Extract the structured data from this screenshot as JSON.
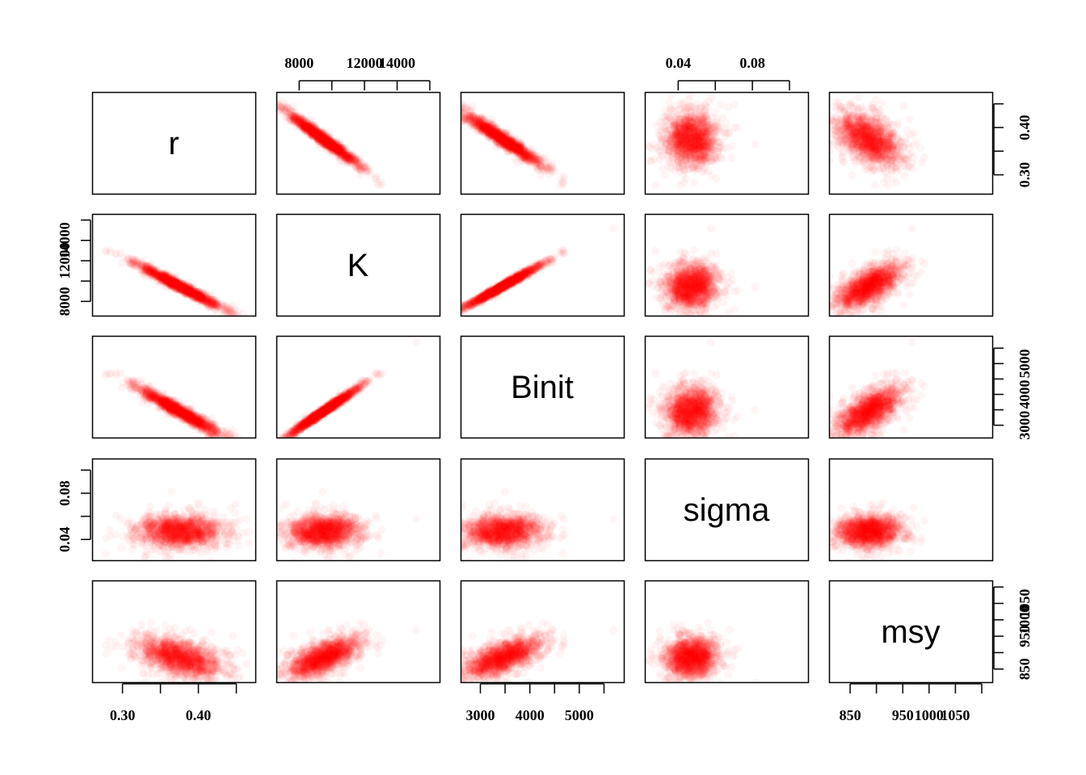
{
  "chart_data": {
    "type": "scatter",
    "plot_kind": "pairs",
    "variables": [
      "r",
      "K",
      "Binit",
      "sigma",
      "msy"
    ],
    "ranges": {
      "r": [
        0.26,
        0.475
      ],
      "K": [
        6600,
        16600
      ],
      "Binit": [
        2600,
        5900
      ],
      "sigma": [
        0.022,
        0.11
      ],
      "msy": [
        810,
        1120
      ]
    },
    "ticks": {
      "r": [
        0.3,
        0.35,
        0.4,
        0.45
      ],
      "K": [
        8000,
        10000,
        12000,
        14000,
        16000
      ],
      "Binit": [
        3000,
        3500,
        4000,
        4500,
        5000,
        5500
      ],
      "sigma": [
        0.04,
        0.06,
        0.08,
        0.1
      ],
      "msy": [
        850,
        900,
        950,
        1000,
        1050,
        1100
      ]
    },
    "tick_labels": {
      "r": [
        "0.30",
        "0.40"
      ],
      "K": [
        "8000",
        "12000",
        "14000",
        "8000"
      ],
      "Binit": [
        "3000",
        "4000",
        "5000",
        "3000"
      ],
      "sigma": [
        "0.04",
        "0.08",
        "0.04"
      ],
      "msy": [
        "850",
        "950",
        "1050",
        "850",
        "1000"
      ]
    },
    "point_color": "#ff0000",
    "point_opacity": 0.04,
    "distribution": {
      "means": {
        "r": 0.375,
        "K": 9500,
        "Binit": 3450,
        "sigma": 0.047,
        "msy": 885
      },
      "sds": {
        "r": 0.028,
        "K": 1100,
        "Binit": 400,
        "sigma": 0.007,
        "msy": 28
      },
      "correlations": {
        "r_K": -0.98,
        "r_Binit": -0.97,
        "r_sigma": 0.0,
        "r_msy": -0.55,
        "K_Binit": 0.99,
        "K_sigma": 0.05,
        "K_msy": 0.72,
        "Binit_sigma": 0.05,
        "Binit_msy": 0.72,
        "sigma_msy": 0.05
      }
    }
  }
}
